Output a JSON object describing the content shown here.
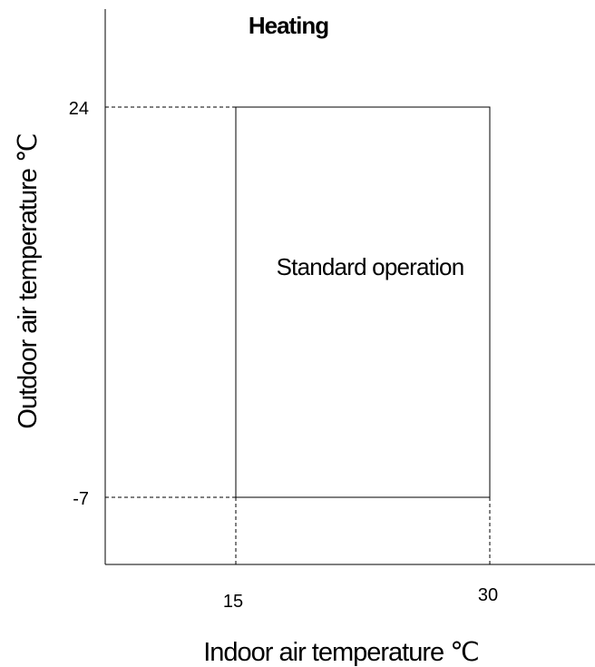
{
  "chart_data": {
    "type": "area",
    "title": "Heating",
    "xlabel": "Indoor air temperature ℃",
    "ylabel": "Outdoor air temperature ℃",
    "x_ticks": [
      "15",
      "30"
    ],
    "y_ticks": [
      "24",
      "-7"
    ],
    "region": {
      "name": "Standard operation",
      "x_min": 15,
      "x_max": 30,
      "y_min": -7,
      "y_max": 24
    },
    "reference_lines": "dashed",
    "grid": false,
    "legend": "none",
    "colors": {
      "line": "#000000",
      "background": "#ffffff"
    }
  }
}
